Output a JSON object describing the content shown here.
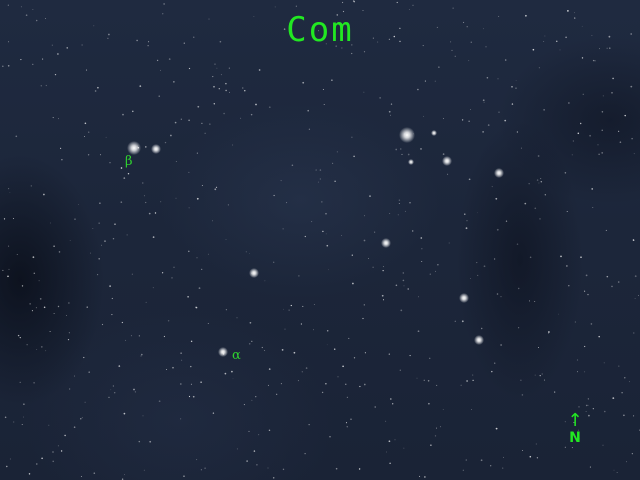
{
  "constellation": {
    "abbreviation": "Com",
    "labels": {
      "alpha": "α",
      "beta": "β"
    }
  },
  "compass": {
    "arrow": "↑",
    "direction": "N"
  },
  "colors": {
    "label": "#22e822",
    "sky": "#1c263a",
    "star": "#ffffff"
  }
}
